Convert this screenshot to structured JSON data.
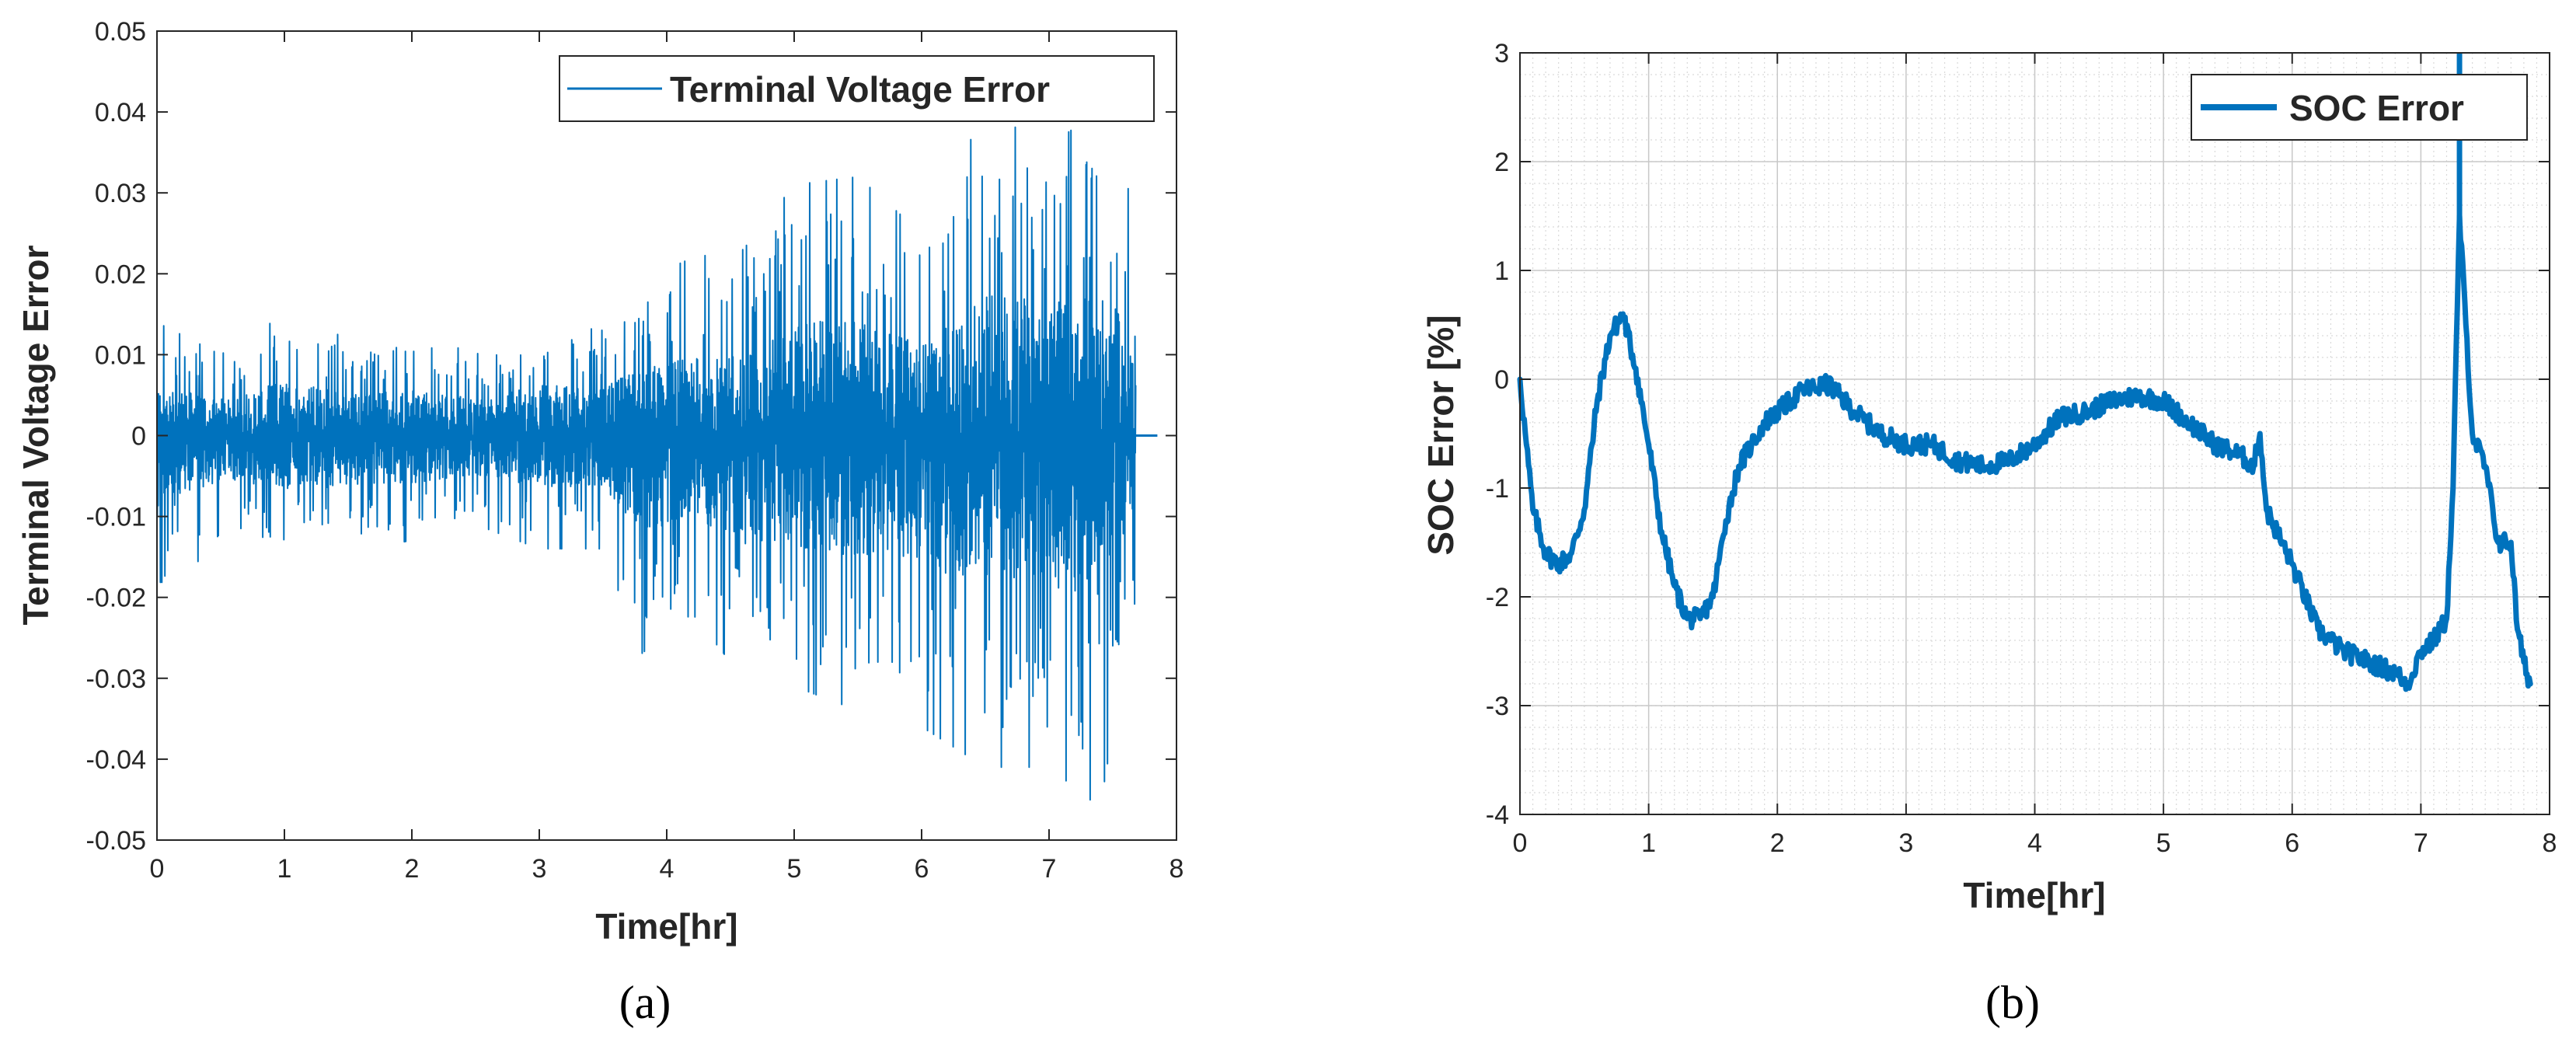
{
  "chart_data": [
    {
      "type": "line",
      "caption": "(a)",
      "xlabel": "Time[hr]",
      "ylabel": "Terminal Voltage Error",
      "xlim": [
        0,
        8
      ],
      "ylim": [
        -0.05,
        0.05
      ],
      "xticks": [
        "0",
        "1",
        "2",
        "3",
        "4",
        "5",
        "6",
        "7",
        "8"
      ],
      "yticks": [
        "-0.05",
        "-0.04",
        "-0.03",
        "-0.02",
        "-0.01",
        "0",
        "0.01",
        "0.02",
        "0.03",
        "0.04",
        "0.05"
      ],
      "grid": false,
      "legend_position": "top-right",
      "color": "#0072BD",
      "series": [
        {
          "name": "Terminal Voltage Error",
          "envelope": {
            "x": [
              0,
              0.5,
              1.0,
              1.5,
              2.0,
              2.5,
              3.0,
              3.5,
              3.8,
              4.2,
              4.6,
              5.0,
              5.5,
              6.0,
              6.5,
              7.0,
              7.4,
              7.68
            ],
            "hi": [
              0.014,
              0.01,
              0.015,
              0.012,
              0.013,
              0.01,
              0.014,
              0.013,
              0.019,
              0.022,
              0.023,
              0.031,
              0.032,
              0.025,
              0.04,
              0.036,
              0.04,
              0.028
            ],
            "lo": [
              -0.022,
              -0.012,
              -0.015,
              -0.014,
              -0.013,
              -0.011,
              -0.014,
              -0.014,
              -0.027,
              -0.022,
              -0.03,
              -0.031,
              -0.034,
              -0.036,
              -0.041,
              -0.041,
              -0.046,
              -0.02
            ]
          },
          "tail": {
            "x": [
              7.68,
              7.85
            ],
            "y": [
              0,
              0
            ]
          }
        }
      ]
    },
    {
      "type": "line",
      "caption": "(b)",
      "xlabel": "Time[hr]",
      "ylabel": "SOC Error [%]",
      "xlim": [
        0,
        8
      ],
      "ylim": [
        -4,
        3
      ],
      "xticks": [
        "0",
        "1",
        "2",
        "3",
        "4",
        "5",
        "6",
        "7",
        "8"
      ],
      "yticks": [
        "-4",
        "-3",
        "-2",
        "-1",
        "0",
        "1",
        "2",
        "3"
      ],
      "grid": true,
      "minor_grid": true,
      "legend_position": "top-right",
      "color": "#0072BD",
      "series": [
        {
          "name": "SOC Error",
          "x": [
            0,
            0.05,
            0.1,
            0.2,
            0.3,
            0.4,
            0.5,
            0.6,
            0.7,
            0.8,
            0.9,
            1.0,
            1.1,
            1.2,
            1.3,
            1.4,
            1.5,
            1.6,
            1.7,
            1.8,
            1.9,
            2.0,
            2.2,
            2.4,
            2.6,
            2.8,
            3.0,
            3.2,
            3.4,
            3.6,
            3.8,
            4.0,
            4.2,
            4.4,
            4.6,
            4.8,
            5.0,
            5.2,
            5.4,
            5.6,
            5.7,
            5.75,
            5.8,
            6.0,
            6.2,
            6.4,
            6.6,
            6.8,
            6.9,
            7.0,
            7.1,
            7.2,
            7.25,
            7.3,
            7.35,
            7.4,
            7.5,
            7.6,
            7.7,
            7.75,
            7.8,
            7.85
          ],
          "y": [
            0,
            -0.6,
            -1.2,
            -1.6,
            -1.7,
            -1.6,
            -1.2,
            -0.2,
            0.4,
            0.6,
            0.1,
            -0.6,
            -1.4,
            -1.9,
            -2.2,
            -2.2,
            -2.0,
            -1.3,
            -0.8,
            -0.6,
            -0.4,
            -0.3,
            -0.1,
            -0.05,
            -0.3,
            -0.5,
            -0.6,
            -0.6,
            -0.75,
            -0.8,
            -0.75,
            -0.6,
            -0.35,
            -0.3,
            -0.2,
            -0.15,
            -0.2,
            -0.4,
            -0.6,
            -0.7,
            -0.8,
            -0.5,
            -1.2,
            -1.7,
            -2.3,
            -2.5,
            -2.6,
            -2.7,
            -2.8,
            -2.5,
            -2.4,
            -2.2,
            -1.0,
            1.5,
            0.5,
            -0.5,
            -0.8,
            -1.5,
            -1.5,
            -2.3,
            -2.6,
            -2.8
          ]
        }
      ]
    }
  ]
}
